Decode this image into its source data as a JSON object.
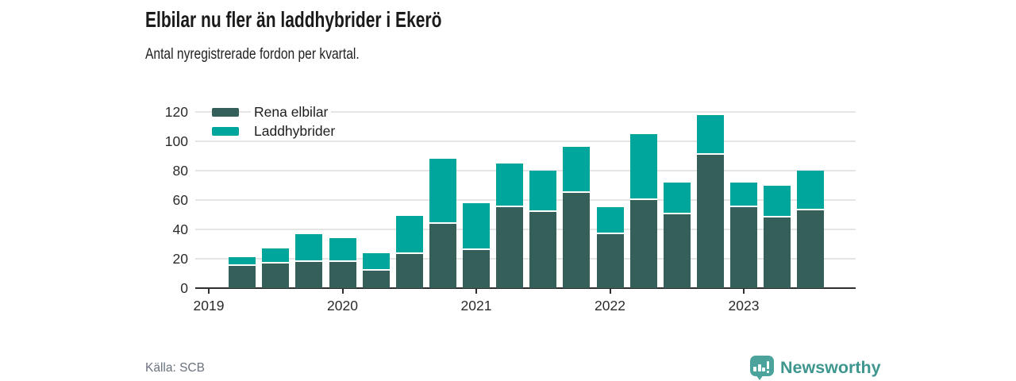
{
  "header": {
    "title": "Elbilar nu fler än laddhybrider i Ekerö",
    "subtitle": "Antal nyregistrerade fordon per kvartal."
  },
  "footer": {
    "source": "Källa: SCB",
    "brand": "Newsworthy"
  },
  "colors": {
    "electric_dark_teal": "#35605a",
    "hybrid_teal": "#00a69c",
    "axis": "#2f2f2f",
    "grid": "#e5e5e5",
    "badge": "#4ba39c",
    "brand_text": "#3e968f",
    "source_gray": "#6b7280"
  },
  "chart_data": {
    "type": "bar",
    "stacked": true,
    "title": "Elbilar nu fler än laddhybrider i Ekerö",
    "subtitle": "Antal nyregistrerade fordon per kvartal.",
    "grid": "horizontal",
    "legend_position": "top-left",
    "ylim": [
      0,
      120
    ],
    "yticks": [
      0,
      20,
      40,
      60,
      80,
      100,
      120
    ],
    "xticks": [
      {
        "label": "2019",
        "quarter_index": 0
      },
      {
        "label": "2020",
        "quarter_index": 4
      },
      {
        "label": "2021",
        "quarter_index": 8
      },
      {
        "label": "2022",
        "quarter_index": 12
      },
      {
        "label": "2023",
        "quarter_index": 16
      }
    ],
    "x_start_quarter_index": 1,
    "categories": [
      "2019 Q2",
      "2019 Q3",
      "2019 Q4",
      "2020 Q1",
      "2020 Q2",
      "2020 Q3",
      "2020 Q4",
      "2021 Q1",
      "2021 Q2",
      "2021 Q3",
      "2021 Q4",
      "2022 Q1",
      "2022 Q2",
      "2022 Q3",
      "2022 Q4",
      "2023 Q1",
      "2023 Q2",
      "2023 Q3"
    ],
    "series": [
      {
        "name": "Rena elbilar",
        "color": "#35605a",
        "values": [
          15,
          17,
          18,
          18,
          12,
          23,
          44,
          26,
          55,
          52,
          65,
          37,
          60,
          50,
          91,
          55,
          48,
          53
        ]
      },
      {
        "name": "Laddhybrider",
        "color": "#00a69c",
        "values": [
          6,
          10,
          19,
          16,
          12,
          26,
          44,
          32,
          30,
          28,
          31,
          18,
          45,
          22,
          27,
          17,
          22,
          27
        ]
      }
    ]
  }
}
